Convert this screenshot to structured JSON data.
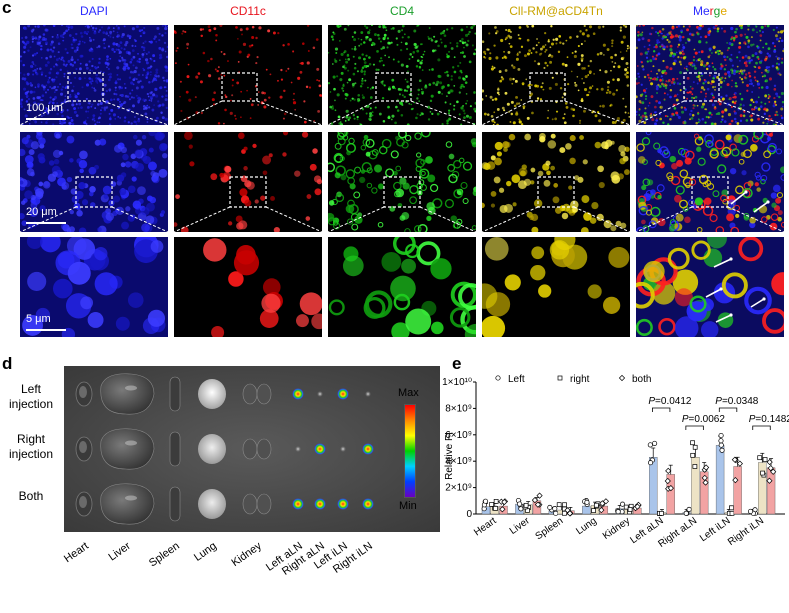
{
  "panel_c": {
    "label": "c",
    "columns": [
      {
        "title": "DAPI",
        "color": "#2b2bff"
      },
      {
        "title": "CD11c",
        "color": "#e8141e"
      },
      {
        "title": "CD4",
        "color": "#1a9e2b"
      },
      {
        "title": "Cll-RM@aCD4Tn",
        "color": "#c9a400"
      },
      {
        "title_parts": [
          "Me",
          "r",
          "g",
          "e"
        ],
        "part_colors": [
          "#2b2bff",
          "#e8141e",
          "#1a9e2b",
          "#e0a800"
        ]
      }
    ],
    "scale_bars": [
      "100 μm",
      "20 μm",
      "5 μm"
    ]
  },
  "panel_d": {
    "label": "d",
    "rows": [
      "Left\ninjection",
      "Right\ninjection",
      "Both"
    ],
    "organs": [
      "Heart",
      "Liver",
      "Spleen",
      "Lung",
      "Kidney",
      "Left aLN",
      "Right aLN",
      "Left iLN",
      "Right iLN"
    ],
    "colorbar": {
      "max": "Max",
      "min": "Min"
    }
  },
  "panel_e": {
    "label": "e",
    "chart_data": {
      "type": "bar",
      "ylabel": "Relative FI",
      "ylim": [
        0,
        10000000000
      ],
      "yticks": [
        "0",
        "2×10⁹",
        "4×10⁹",
        "6×10⁹",
        "8×10⁹",
        "1×10¹⁰"
      ],
      "categories": [
        "Heart",
        "Liver",
        "Spleen",
        "Lung",
        "Kidney",
        "Left aLN",
        "Right aLN",
        "Left iLN",
        "Right iLN"
      ],
      "series": [
        {
          "name": "Left",
          "color": "#a9c4ea",
          "marker": "circle",
          "values": [
            0.55,
            0.75,
            0.25,
            0.6,
            0.4,
            4.3,
            0.1,
            5.2,
            0.1
          ]
        },
        {
          "name": "right",
          "color": "#ede3c5",
          "marker": "square",
          "values": [
            0.55,
            0.7,
            0.3,
            0.65,
            0.35,
            0.1,
            4.3,
            0.1,
            3.9
          ]
        },
        {
          "name": "both",
          "color": "#f2a3a3",
          "marker": "diamond",
          "values": [
            0.6,
            1.0,
            0.25,
            0.6,
            0.45,
            3.0,
            3.2,
            3.6,
            3.5
          ]
        }
      ],
      "legend_text_colors": [
        "#3f5fd8",
        "#e8901e",
        "#e8141e"
      ],
      "annotations": [
        {
          "text_prefix": "P",
          "text": "=0.0412",
          "category": "Left aLN"
        },
        {
          "text_prefix": "P",
          "text": "=0.0062",
          "category": "Right aLN"
        },
        {
          "text_prefix": "P",
          "text": "=0.0348",
          "category": "Left iLN"
        },
        {
          "text_prefix": "P",
          "text": "=0.1482",
          "category": "Right iLN"
        }
      ]
    }
  }
}
